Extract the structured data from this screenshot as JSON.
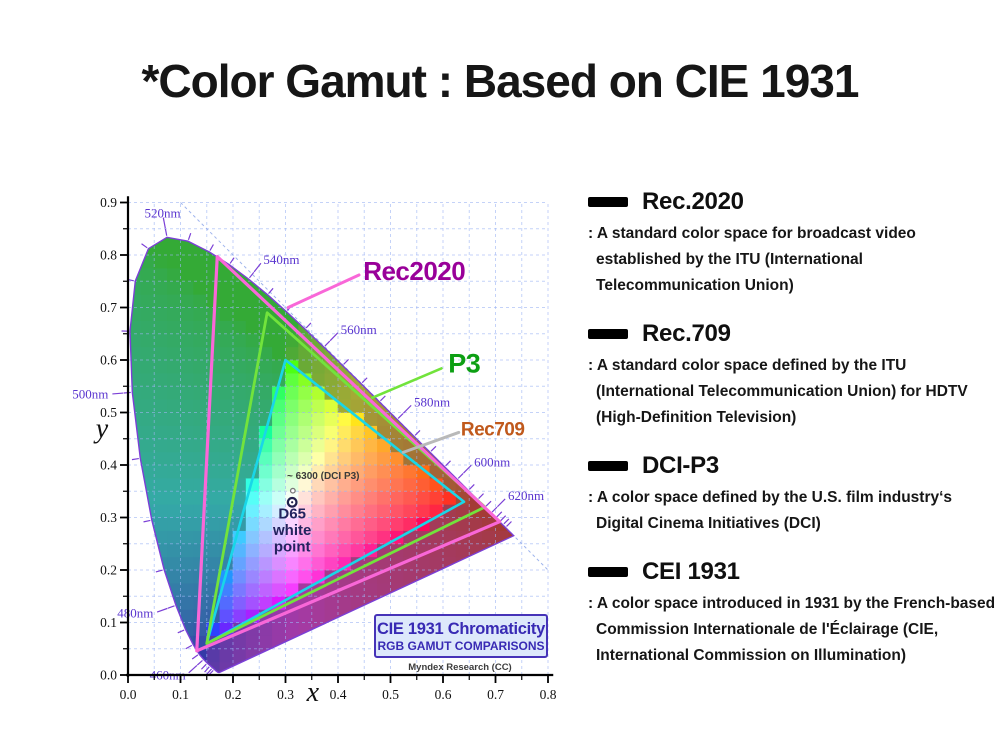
{
  "title": "*Color Gamut : Based on CIE 1931",
  "panel": {
    "entries": [
      {
        "heading": "Rec.2020",
        "lines": [
          ": A standard color space for broadcast video",
          "established by the ITU (International",
          "Telecommunication Union)"
        ]
      },
      {
        "heading": "Rec.709",
        "lines": [
          ": A standard color space defined by the ITU",
          "(International Telecommunication Union) for HDTV",
          "(High-Definition Television)"
        ]
      },
      {
        "heading": "DCI-P3",
        "lines": [
          ": A color space defined by the U.S. film industry‘s",
          "Digital Cinema Initiatives (DCI)"
        ]
      },
      {
        "heading": "CEI 1931",
        "lines": [
          ": A color space introduced in 1931 by the French-based",
          "Commission Internationale de l'Éclairage (CIE,",
          "International Commission on Illumination)"
        ]
      }
    ]
  },
  "chart_data": {
    "type": "area",
    "title": "CIE 1931 Chromaticity",
    "subtitle": "RGB GAMUT COMPARISONS",
    "credit": "Myndex Research (CC)",
    "xlabel": "x",
    "ylabel": "y",
    "xlim": [
      0.0,
      0.8
    ],
    "ylim": [
      0.0,
      0.9
    ],
    "x_ticks": [
      "0.0",
      "0.1",
      "0.2",
      "0.3",
      "0.4",
      "0.5",
      "0.6",
      "0.7",
      "0.8"
    ],
    "y_ticks": [
      "0.0",
      "0.1",
      "0.2",
      "0.3",
      "0.4",
      "0.5",
      "0.6",
      "0.7",
      "0.8",
      "0.9"
    ],
    "grid_step": 0.05,
    "legend_position": "in-plot leader lines",
    "style": {
      "grid_color": "#9db4f4",
      "diagonal_color": "#8fa8ea",
      "locus_color": "#7b3fd6",
      "wavelength_text_color": "#5a35cf",
      "axis_color": "#000000",
      "whitepoint_text_color": "#23235e",
      "dci_text_color": "#3a3a3a"
    },
    "wavelength_labels": [
      "460nm",
      "480nm",
      "500nm",
      "520nm",
      "540nm",
      "560nm",
      "580nm",
      "600nm",
      "620nm"
    ],
    "gamuts": [
      {
        "name": "Rec2020",
        "line_color": "#f967d8",
        "line_width": 3.2,
        "label_color": "#990099",
        "label_size": 26,
        "label_pos": [
          0.448,
          0.752
        ],
        "leader": [
          [
            0.305,
            0.7
          ],
          [
            0.44,
            0.762
          ]
        ],
        "leader_color": "#f967d8",
        "leader_width": 3,
        "vertices": [
          [
            0.708,
            0.292
          ],
          [
            0.17,
            0.797
          ],
          [
            0.131,
            0.046
          ]
        ]
      },
      {
        "name": "P3",
        "line_color": "#72e33c",
        "line_width": 2.8,
        "label_color": "#0d9f13",
        "label_size": 27,
        "label_pos": [
          0.61,
          0.576
        ],
        "leader": [
          [
            0.465,
            0.528
          ],
          [
            0.597,
            0.584
          ]
        ],
        "leader_color": "#72e33c",
        "leader_width": 2.6,
        "vertices": [
          [
            0.68,
            0.32
          ],
          [
            0.265,
            0.69
          ],
          [
            0.15,
            0.06
          ]
        ]
      },
      {
        "name": "Rec709",
        "line_color": "#19d6e8",
        "line_width": 2.6,
        "label_color": "#c0591c",
        "label_size": 19,
        "label_pos": [
          0.634,
          0.456
        ],
        "leader": [
          [
            0.524,
            0.424
          ],
          [
            0.63,
            0.462
          ]
        ],
        "leader_color": "#b9b9b9",
        "leader_width": 3,
        "vertices": [
          [
            0.64,
            0.33
          ],
          [
            0.3,
            0.6
          ],
          [
            0.15,
            0.06
          ]
        ]
      }
    ],
    "white_points": [
      {
        "label_lines": [
          "D65",
          "white",
          "point"
        ],
        "x": 0.3127,
        "y": 0.329
      },
      {
        "label": "~ 6300 (DCI P3)",
        "x": 0.314,
        "y": 0.351,
        "label_pos": [
          0.3028,
          0.373
        ]
      }
    ],
    "spectral_locus": [
      [
        380,
        0.1741,
        0.005
      ],
      [
        400,
        0.1733,
        0.0048
      ],
      [
        420,
        0.1714,
        0.0051
      ],
      [
        430,
        0.1689,
        0.0069
      ],
      [
        435,
        0.1666,
        0.0086
      ],
      [
        440,
        0.1644,
        0.0109
      ],
      [
        445,
        0.1611,
        0.0138
      ],
      [
        450,
        0.1566,
        0.0177
      ],
      [
        455,
        0.151,
        0.0227
      ],
      [
        460,
        0.144,
        0.0297
      ],
      [
        465,
        0.1355,
        0.0399
      ],
      [
        470,
        0.1241,
        0.0578
      ],
      [
        475,
        0.1096,
        0.0868
      ],
      [
        480,
        0.0913,
        0.1327
      ],
      [
        485,
        0.0687,
        0.2007
      ],
      [
        490,
        0.0454,
        0.295
      ],
      [
        495,
        0.0235,
        0.4127
      ],
      [
        500,
        0.0082,
        0.5384
      ],
      [
        505,
        0.0039,
        0.6548
      ],
      [
        510,
        0.0139,
        0.7502
      ],
      [
        515,
        0.0389,
        0.812
      ],
      [
        520,
        0.0743,
        0.8338
      ],
      [
        525,
        0.1142,
        0.8262
      ],
      [
        530,
        0.1547,
        0.8059
      ],
      [
        535,
        0.1929,
        0.7816
      ],
      [
        540,
        0.2296,
        0.7543
      ],
      [
        545,
        0.2658,
        0.7243
      ],
      [
        550,
        0.3016,
        0.6923
      ],
      [
        555,
        0.3373,
        0.6589
      ],
      [
        560,
        0.3731,
        0.6245
      ],
      [
        565,
        0.4087,
        0.5896
      ],
      [
        570,
        0.4441,
        0.5547
      ],
      [
        575,
        0.4788,
        0.5202
      ],
      [
        580,
        0.5125,
        0.4866
      ],
      [
        585,
        0.5448,
        0.4544
      ],
      [
        590,
        0.5752,
        0.4242
      ],
      [
        595,
        0.6029,
        0.3965
      ],
      [
        600,
        0.627,
        0.3725
      ],
      [
        605,
        0.6482,
        0.3514
      ],
      [
        610,
        0.6658,
        0.334
      ],
      [
        615,
        0.6801,
        0.3197
      ],
      [
        620,
        0.6915,
        0.3083
      ],
      [
        625,
        0.7006,
        0.2993
      ],
      [
        630,
        0.7079,
        0.292
      ],
      [
        635,
        0.714,
        0.2859
      ],
      [
        640,
        0.719,
        0.2809
      ],
      [
        650,
        0.726,
        0.274
      ],
      [
        660,
        0.73,
        0.27
      ],
      [
        680,
        0.7334,
        0.2666
      ],
      [
        700,
        0.7347,
        0.2653
      ]
    ]
  }
}
